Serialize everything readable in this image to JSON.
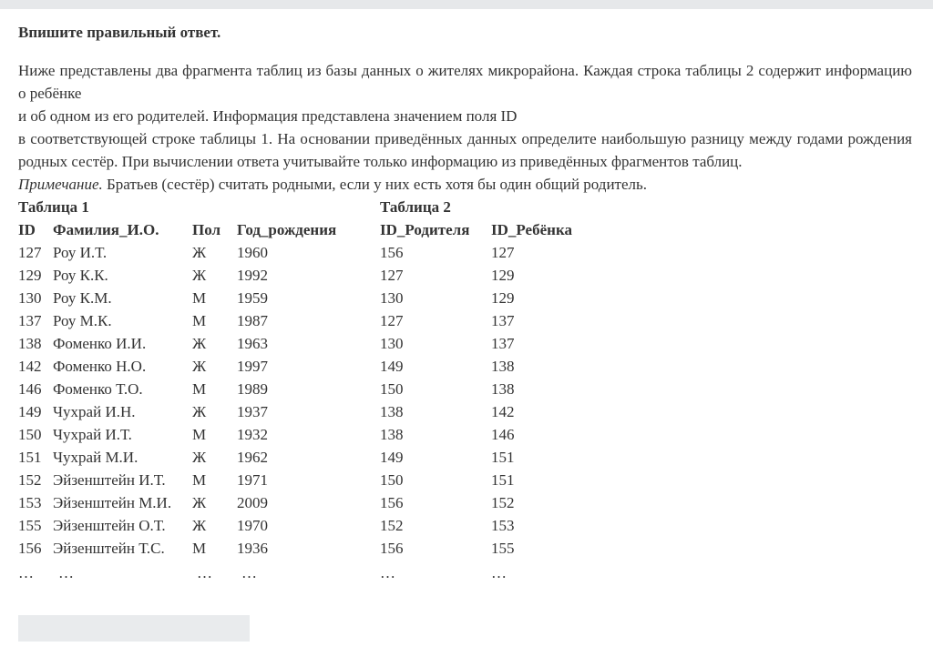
{
  "task": {
    "title": "Впишите правильный ответ.",
    "paragraphs": [
      "Ниже представлены два фрагмента таблиц из базы данных о жителях микрорайона. Каждая строка таблицы 2 содержит информацию о ребёнке",
      "и об одном из его родителей. Информация представлена значением поля  ID",
      "в соответствующей строке таблицы 1. На основании приведённых данных определите наибольшую разницу между годами рождения родных сестёр. При вычислении ответа учитывайте только информацию из приведённых фрагментов таблиц."
    ],
    "note_label": "Примечание.",
    "note_text": "Братьев (сестёр) считать родными, если у них есть хотя бы один общий родитель."
  },
  "table1": {
    "caption": "Таблица 1",
    "header": [
      "ID",
      "Фамилия_И.О.",
      "Пол",
      "Год_рождения"
    ],
    "rows": [
      [
        127,
        "Роу И.Т.",
        "Ж",
        1960
      ],
      [
        129,
        "Роу К.К.",
        "Ж",
        1992
      ],
      [
        130,
        "Роу К.М.",
        "М",
        1959
      ],
      [
        137,
        "Роу М.К.",
        "М",
        1987
      ],
      [
        138,
        "Фоменко И.И.",
        "Ж",
        1963
      ],
      [
        142,
        "Фоменко Н.О.",
        "Ж",
        1997
      ],
      [
        146,
        "Фоменко Т.О.",
        "М",
        1989
      ],
      [
        149,
        "Чухрай И.Н.",
        "Ж",
        1937
      ],
      [
        150,
        "Чухрай И.Т.",
        "М",
        1932
      ],
      [
        151,
        "Чухрай М.И.",
        "Ж",
        1962
      ],
      [
        152,
        "Эйзенштейн И.Т.",
        "М",
        1971
      ],
      [
        153,
        "Эйзенштейн М.И.",
        "Ж",
        2009
      ],
      [
        155,
        "Эйзенштейн О.Т.",
        "Ж",
        1970
      ],
      [
        156,
        "Эйзенштейн Т.С.",
        "М",
        1936
      ],
      [
        "…",
        "…",
        "…",
        "…"
      ]
    ]
  },
  "table2": {
    "caption": "Таблица 2",
    "header": [
      "ID_Родителя",
      "ID_Ребёнка"
    ],
    "rows": [
      [
        156,
        127
      ],
      [
        127,
        129
      ],
      [
        130,
        129
      ],
      [
        127,
        137
      ],
      [
        130,
        137
      ],
      [
        149,
        138
      ],
      [
        150,
        138
      ],
      [
        138,
        142
      ],
      [
        138,
        146
      ],
      [
        149,
        151
      ],
      [
        150,
        151
      ],
      [
        156,
        152
      ],
      [
        152,
        153
      ],
      [
        156,
        155
      ],
      [
        "…",
        "…"
      ]
    ]
  }
}
